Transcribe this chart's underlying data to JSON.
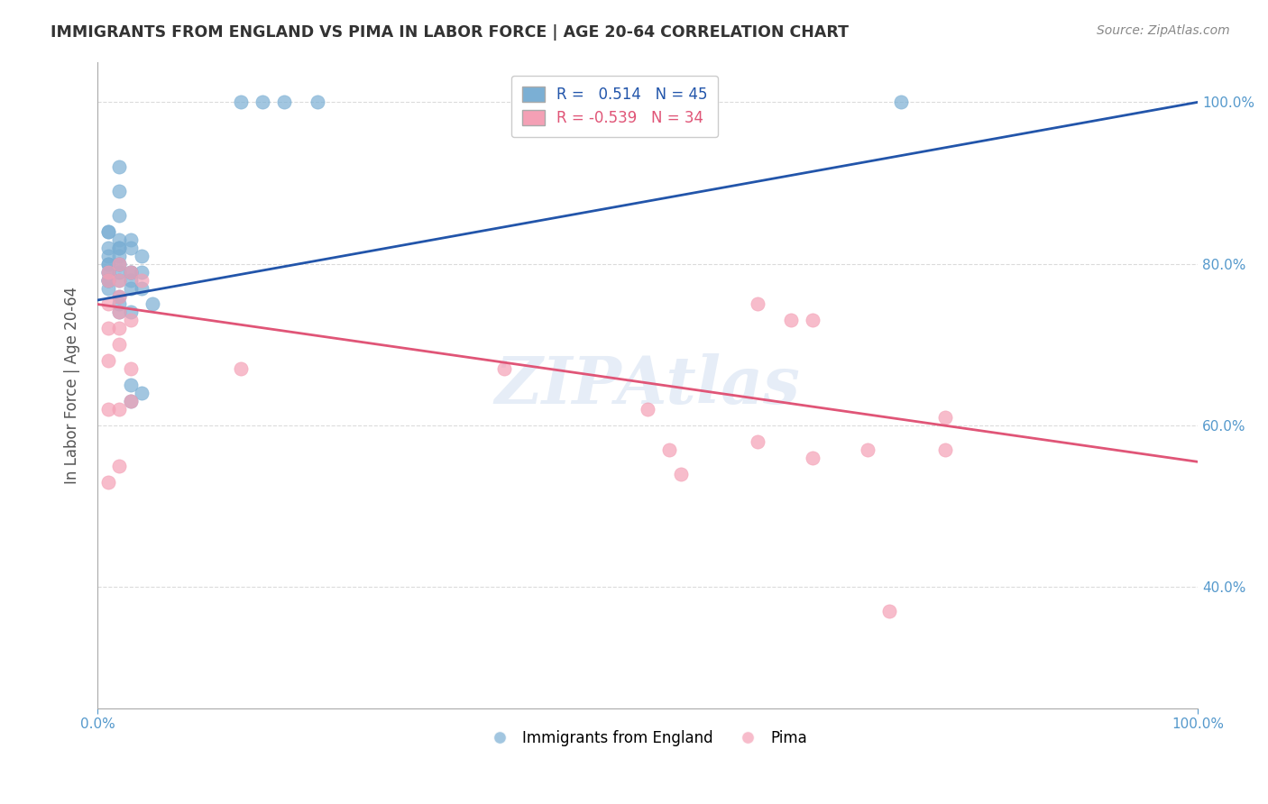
{
  "title": "IMMIGRANTS FROM ENGLAND VS PIMA IN LABOR FORCE | AGE 20-64 CORRELATION CHART",
  "source": "Source: ZipAtlas.com",
  "ylabel": "In Labor Force | Age 20-64",
  "xlabel": "",
  "xlim": [
    0,
    1
  ],
  "ylim": [
    0.25,
    1.05
  ],
  "blue_r": 0.514,
  "blue_n": 45,
  "pink_r": -0.539,
  "pink_n": 34,
  "blue_color": "#7bafd4",
  "pink_color": "#f4a0b5",
  "blue_line_color": "#2255aa",
  "pink_line_color": "#e05577",
  "watermark": "ZIPAtlas",
  "yticks": [
    0.4,
    0.6,
    0.8,
    1.0
  ],
  "ytick_labels": [
    "40.0%",
    "60.0%",
    "80.0%",
    "100.0%"
  ],
  "xticks": [
    0.0,
    0.2,
    0.4,
    0.6,
    0.8,
    1.0
  ],
  "xtick_labels": [
    "0.0%",
    "",
    "",
    "",
    "",
    "100.0%"
  ],
  "legend_label_blue": "Immigrants from England",
  "legend_label_pink": "Pima",
  "blue_points": [
    [
      0.01,
      0.84
    ],
    [
      0.01,
      0.84
    ],
    [
      0.01,
      0.82
    ],
    [
      0.01,
      0.81
    ],
    [
      0.01,
      0.8
    ],
    [
      0.01,
      0.8
    ],
    [
      0.01,
      0.79
    ],
    [
      0.01,
      0.79
    ],
    [
      0.01,
      0.78
    ],
    [
      0.01,
      0.78
    ],
    [
      0.01,
      0.78
    ],
    [
      0.01,
      0.77
    ],
    [
      0.02,
      0.92
    ],
    [
      0.02,
      0.89
    ],
    [
      0.02,
      0.86
    ],
    [
      0.02,
      0.83
    ],
    [
      0.02,
      0.82
    ],
    [
      0.02,
      0.82
    ],
    [
      0.02,
      0.81
    ],
    [
      0.02,
      0.8
    ],
    [
      0.02,
      0.8
    ],
    [
      0.02,
      0.79
    ],
    [
      0.02,
      0.78
    ],
    [
      0.02,
      0.76
    ],
    [
      0.02,
      0.75
    ],
    [
      0.02,
      0.74
    ],
    [
      0.03,
      0.83
    ],
    [
      0.03,
      0.82
    ],
    [
      0.03,
      0.79
    ],
    [
      0.03,
      0.79
    ],
    [
      0.03,
      0.78
    ],
    [
      0.03,
      0.77
    ],
    [
      0.03,
      0.74
    ],
    [
      0.03,
      0.65
    ],
    [
      0.03,
      0.63
    ],
    [
      0.04,
      0.81
    ],
    [
      0.04,
      0.79
    ],
    [
      0.04,
      0.77
    ],
    [
      0.04,
      0.64
    ],
    [
      0.05,
      0.75
    ],
    [
      0.13,
      1.0
    ],
    [
      0.15,
      1.0
    ],
    [
      0.17,
      1.0
    ],
    [
      0.2,
      1.0
    ],
    [
      0.73,
      1.0
    ]
  ],
  "pink_points": [
    [
      0.01,
      0.79
    ],
    [
      0.01,
      0.78
    ],
    [
      0.01,
      0.75
    ],
    [
      0.01,
      0.72
    ],
    [
      0.01,
      0.68
    ],
    [
      0.01,
      0.62
    ],
    [
      0.01,
      0.53
    ],
    [
      0.02,
      0.8
    ],
    [
      0.02,
      0.78
    ],
    [
      0.02,
      0.76
    ],
    [
      0.02,
      0.74
    ],
    [
      0.02,
      0.72
    ],
    [
      0.02,
      0.7
    ],
    [
      0.02,
      0.62
    ],
    [
      0.02,
      0.55
    ],
    [
      0.03,
      0.79
    ],
    [
      0.03,
      0.73
    ],
    [
      0.03,
      0.67
    ],
    [
      0.03,
      0.63
    ],
    [
      0.04,
      0.78
    ],
    [
      0.13,
      0.67
    ],
    [
      0.37,
      0.67
    ],
    [
      0.5,
      0.62
    ],
    [
      0.52,
      0.57
    ],
    [
      0.53,
      0.54
    ],
    [
      0.6,
      0.75
    ],
    [
      0.6,
      0.58
    ],
    [
      0.63,
      0.73
    ],
    [
      0.65,
      0.73
    ],
    [
      0.65,
      0.56
    ],
    [
      0.7,
      0.57
    ],
    [
      0.72,
      0.37
    ],
    [
      0.77,
      0.61
    ],
    [
      0.77,
      0.57
    ]
  ],
  "blue_line": [
    [
      0.0,
      0.755
    ],
    [
      1.0,
      1.0
    ]
  ],
  "pink_line": [
    [
      0.0,
      0.75
    ],
    [
      1.0,
      0.555
    ]
  ],
  "background_color": "#ffffff",
  "grid_color": "#cccccc",
  "title_color": "#333333",
  "axis_color": "#aaaaaa",
  "right_yaxis_color": "#5599cc"
}
